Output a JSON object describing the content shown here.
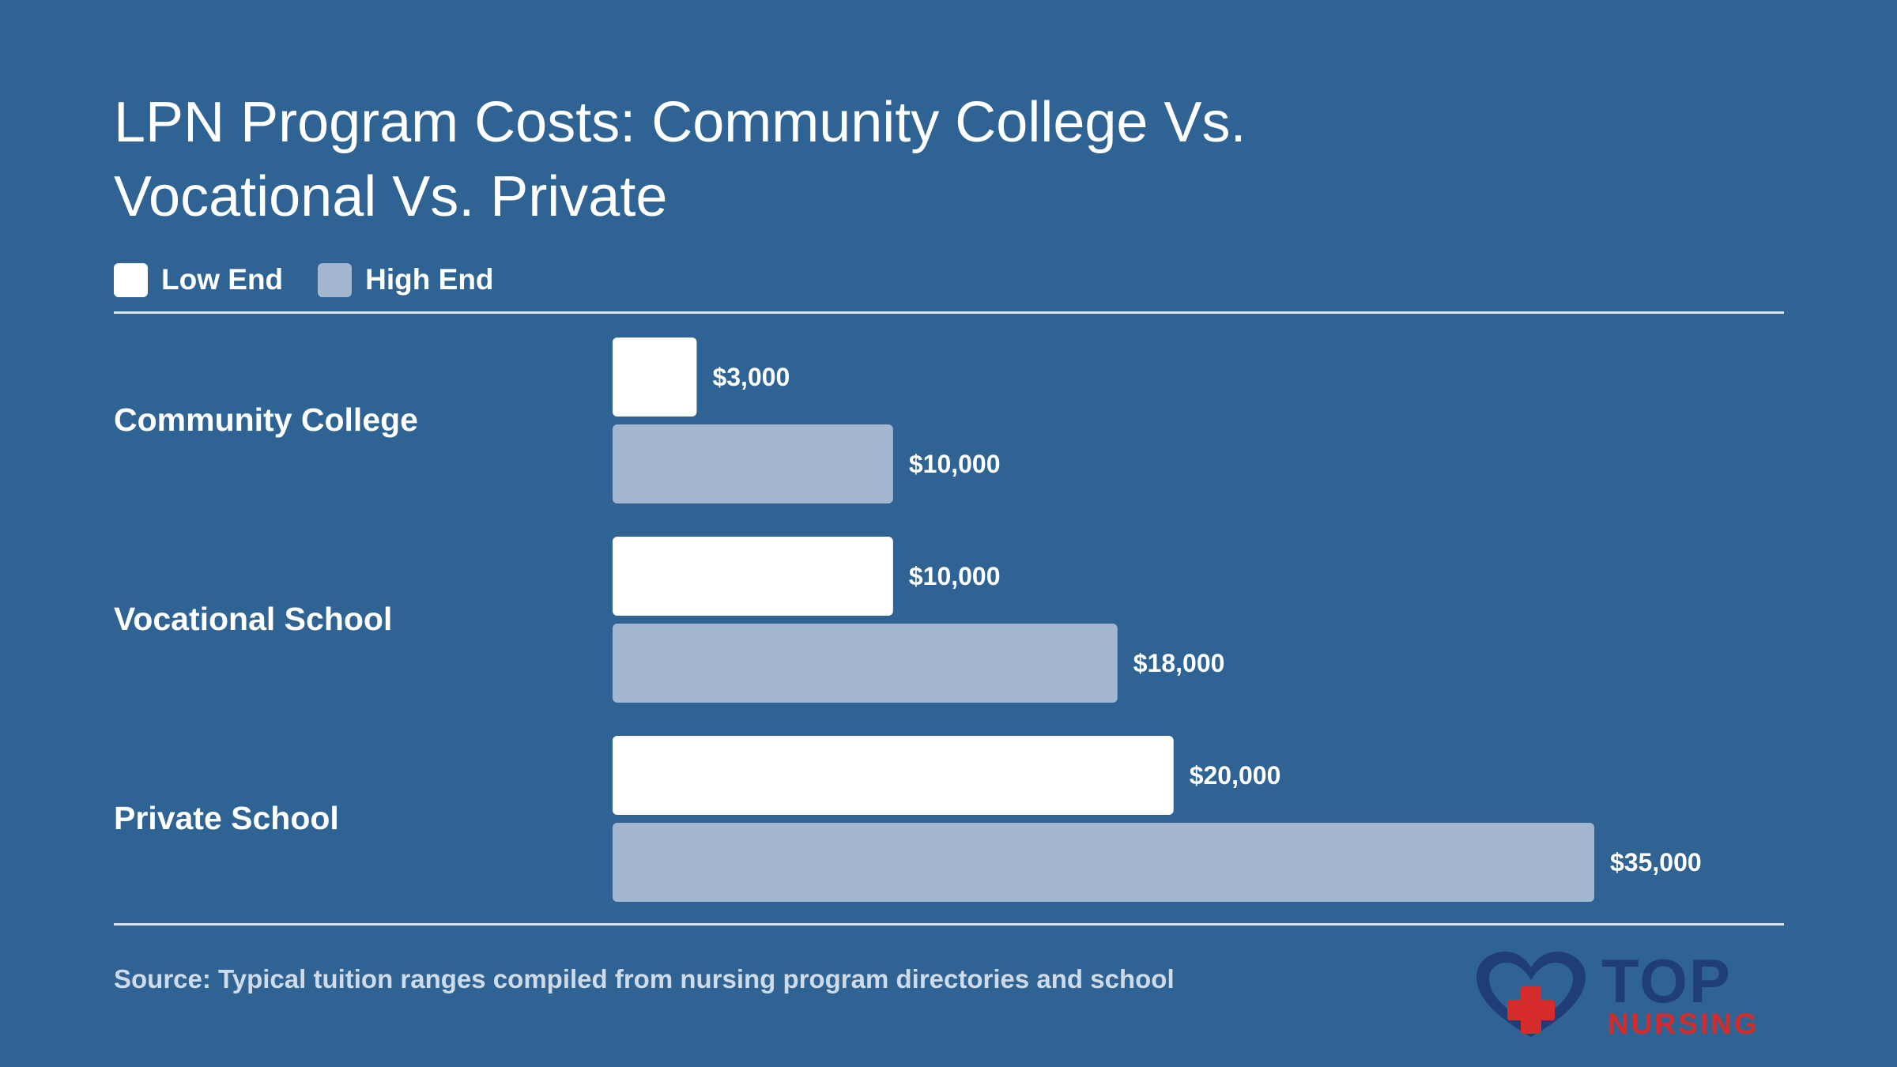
{
  "title": "LPN Program Costs: Community College Vs. Vocational Vs. Private",
  "legend": [
    {
      "label": "Low End",
      "color": "#ffffff"
    },
    {
      "label": "High End",
      "color": "#a3b8cf"
    }
  ],
  "source": "Source: Typical tuition ranges compiled from nursing program directories and school",
  "logo": {
    "word": "TOP",
    "sub": "NURSING"
  },
  "chart_data": {
    "type": "bar",
    "orientation": "horizontal",
    "title": "LPN Program Costs: Community College Vs. Vocational Vs. Private",
    "categories": [
      "Community College",
      "Vocational School",
      "Private School"
    ],
    "series": [
      {
        "name": "Low End",
        "color": "#ffffff",
        "values": [
          3000,
          10000,
          20000
        ],
        "labels": [
          "$3,000",
          "$10,000",
          "$20,000"
        ]
      },
      {
        "name": "High End",
        "color": "#a3b8cf",
        "values": [
          10000,
          18000,
          35000
        ],
        "labels": [
          "$10,000",
          "$18,000",
          "$35,000"
        ]
      }
    ],
    "xlim": [
      0,
      35000
    ],
    "grid": false,
    "legend_position": "top-left"
  }
}
